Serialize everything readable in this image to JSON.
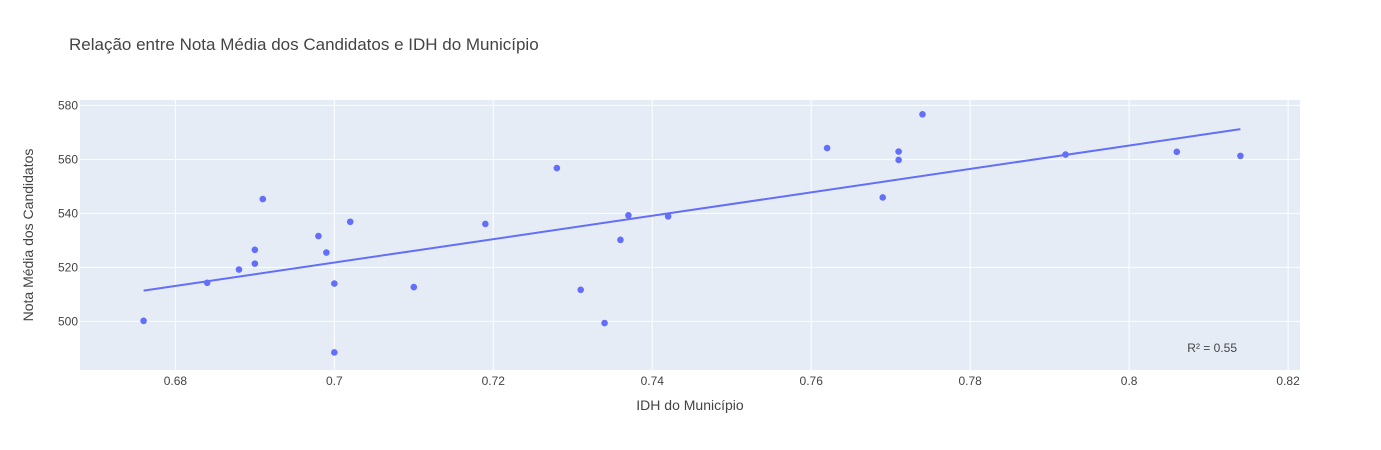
{
  "chart_data": {
    "type": "scatter",
    "title": "Relação entre Nota Média dos Candidatos e IDH do Município",
    "xlabel": "IDH do Município",
    "ylabel": "Nota Média dos Candidatos",
    "xlim": [
      0.668,
      0.8215
    ],
    "ylim": [
      482,
      582
    ],
    "x_ticks": [
      0.68,
      0.7,
      0.72,
      0.74,
      0.76,
      0.78,
      0.8,
      0.82
    ],
    "x_tick_labels": [
      "0.68",
      "0.7",
      "0.72",
      "0.74",
      "0.76",
      "0.78",
      "0.8",
      "0.82"
    ],
    "y_ticks": [
      500,
      520,
      540,
      560,
      580
    ],
    "y_tick_labels": [
      "500",
      "520",
      "540",
      "560",
      "580"
    ],
    "grid": true,
    "points": [
      {
        "x": 0.676,
        "y": 500.2
      },
      {
        "x": 0.684,
        "y": 514.3
      },
      {
        "x": 0.688,
        "y": 519.2
      },
      {
        "x": 0.69,
        "y": 526.5
      },
      {
        "x": 0.69,
        "y": 521.4
      },
      {
        "x": 0.691,
        "y": 545.3
      },
      {
        "x": 0.698,
        "y": 531.6
      },
      {
        "x": 0.699,
        "y": 525.5
      },
      {
        "x": 0.7,
        "y": 514.0
      },
      {
        "x": 0.7,
        "y": 488.5
      },
      {
        "x": 0.702,
        "y": 536.9
      },
      {
        "x": 0.71,
        "y": 512.7
      },
      {
        "x": 0.719,
        "y": 536.1
      },
      {
        "x": 0.728,
        "y": 556.8
      },
      {
        "x": 0.731,
        "y": 511.7
      },
      {
        "x": 0.734,
        "y": 499.4
      },
      {
        "x": 0.736,
        "y": 530.2
      },
      {
        "x": 0.737,
        "y": 539.3
      },
      {
        "x": 0.742,
        "y": 538.9
      },
      {
        "x": 0.762,
        "y": 564.2
      },
      {
        "x": 0.769,
        "y": 545.9
      },
      {
        "x": 0.771,
        "y": 562.9
      },
      {
        "x": 0.771,
        "y": 559.8
      },
      {
        "x": 0.774,
        "y": 576.7
      },
      {
        "x": 0.792,
        "y": 561.8
      },
      {
        "x": 0.806,
        "y": 562.8
      },
      {
        "x": 0.814,
        "y": 561.3
      }
    ],
    "trendline": {
      "x": [
        0.676,
        0.814
      ],
      "y": [
        511.4,
        571.2
      ]
    },
    "annotation": "R² = 0.55",
    "colors": {
      "marker": "#636efa",
      "line": "#636efa",
      "plot_bg": "#e5ecf6",
      "grid": "#ffffff",
      "text": "#444444"
    }
  }
}
